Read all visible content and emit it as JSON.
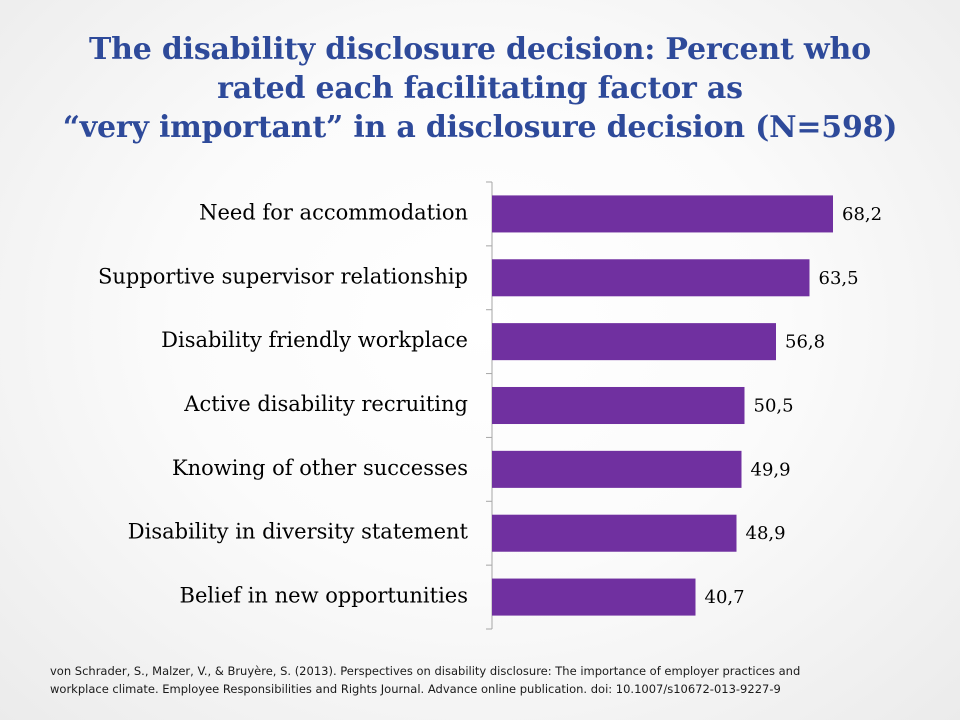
{
  "title": {
    "line1": "The disability disclosure decision: Percent who",
    "line2": "rated each facilitating factor as",
    "line3": "“very important” in a disclosure decision (N=598)"
  },
  "chart_data": {
    "type": "bar",
    "orientation": "horizontal",
    "categories": [
      "Need for accommodation",
      "Supportive supervisor relationship",
      "Disability friendly workplace",
      "Active disability recruiting",
      "Knowing of other successes",
      "Disability in diversity statement",
      "Belief in new opportunities"
    ],
    "values": [
      68.2,
      63.5,
      56.8,
      50.5,
      49.9,
      48.9,
      40.7
    ],
    "data_labels": [
      "68,2",
      "63,5",
      "56,8",
      "50,5",
      "49,9",
      "48,9",
      "40,7"
    ],
    "xlim": [
      0,
      70
    ],
    "bar_color": "#7030a0",
    "axis_color": "#a6a6a6",
    "grid": false,
    "legend": "none"
  },
  "citation": {
    "line1": "von Schrader, S., Malzer, V., & Bruyère, S. (2013).  Perspectives on disability disclosure: The importance of employer practices and",
    "line2": "workplace climate.  Employee Responsibilities and Rights Journal.  Advance online publication.  doi: 10.1007/s10672-013-9227-9"
  }
}
